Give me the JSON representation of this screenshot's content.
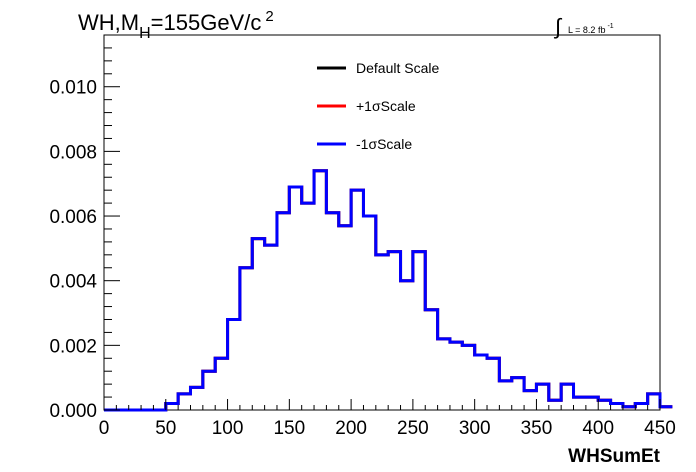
{
  "chart_data": {
    "type": "line",
    "title": {
      "main": "WH,M",
      "subscript": "H",
      "rest": "=155GeV/c",
      "superscript": "2"
    },
    "luminosity": {
      "integral_symbol": "∫",
      "text": "L = 8.2 fb",
      "superscript": "-1"
    },
    "xlabel": "WHSumEt",
    "ylabel": "",
    "xlim": [
      0,
      450
    ],
    "ylim": [
      0,
      0.0116
    ],
    "x_ticks": [
      0,
      50,
      100,
      150,
      200,
      250,
      300,
      350,
      400,
      450
    ],
    "y_ticks": [
      "0.000",
      "0.002",
      "0.004",
      "0.006",
      "0.008",
      "0.010"
    ],
    "y_tick_values": [
      0,
      0.002,
      0.004,
      0.006,
      0.008,
      0.01
    ],
    "grid": false,
    "legend_position": "top-center",
    "bin_width": 10,
    "bin_edges_start": 0,
    "series": [
      {
        "name": "Default Scale",
        "color": "#000000",
        "values": [
          0,
          0,
          0,
          0,
          0,
          0.0002,
          0.0005,
          0.0007,
          0.0012,
          0.0016,
          0.0028,
          0.0044,
          0.0053,
          0.0051,
          0.0061,
          0.0069,
          0.0064,
          0.0074,
          0.0061,
          0.0057,
          0.0068,
          0.006,
          0.0048,
          0.0049,
          0.004,
          0.0049,
          0.0031,
          0.0022,
          0.0021,
          0.002,
          0.0017,
          0.0016,
          0.0009,
          0.001,
          0.0006,
          0.0008,
          0.0003,
          0.0008,
          0.0004,
          0.0004,
          0.0003,
          0.0002,
          0.0001,
          0.0002,
          0.0005,
          0.0001
        ]
      },
      {
        "name": "+1σScale",
        "color": "#ff0000",
        "values": [
          0,
          0,
          0,
          0,
          0,
          0.0002,
          0.0005,
          0.0007,
          0.0012,
          0.0016,
          0.0028,
          0.0044,
          0.0053,
          0.0051,
          0.0061,
          0.0069,
          0.0064,
          0.0074,
          0.0061,
          0.0057,
          0.0068,
          0.006,
          0.0048,
          0.0049,
          0.004,
          0.0049,
          0.0031,
          0.0022,
          0.0021,
          0.002,
          0.0017,
          0.0016,
          0.0009,
          0.001,
          0.0006,
          0.0008,
          0.0003,
          0.0008,
          0.0004,
          0.0004,
          0.0003,
          0.0002,
          0.0001,
          0.0002,
          0.0005,
          0.0001
        ]
      },
      {
        "name": "-1σScale",
        "color": "#0000ff",
        "values": [
          0,
          0,
          0,
          0,
          0,
          0.0002,
          0.0005,
          0.0007,
          0.0012,
          0.0016,
          0.0028,
          0.0044,
          0.0053,
          0.0051,
          0.0061,
          0.0069,
          0.0064,
          0.0074,
          0.0061,
          0.0057,
          0.0068,
          0.006,
          0.0048,
          0.0049,
          0.004,
          0.0049,
          0.0031,
          0.0022,
          0.0021,
          0.002,
          0.0017,
          0.0016,
          0.0009,
          0.001,
          0.0006,
          0.0008,
          0.0003,
          0.0008,
          0.0004,
          0.0004,
          0.0003,
          0.0002,
          0.0001,
          0.0002,
          0.0005,
          0.0001
        ]
      }
    ]
  }
}
